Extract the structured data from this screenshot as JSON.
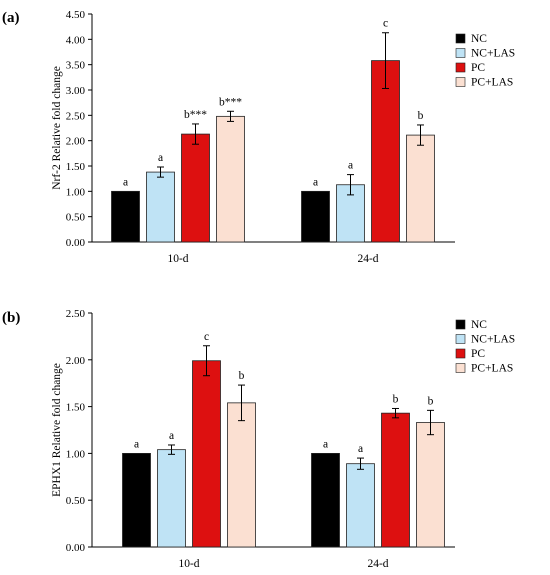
{
  "figure": {
    "panels": [
      {
        "label": "(a)"
      },
      {
        "label": "(b)"
      }
    ]
  },
  "colors": {
    "NC": "#000000",
    "NC+LAS": "#bfe3f5",
    "PC": "#dd1010",
    "PC+LAS": "#fbe0d2"
  },
  "chart_data": [
    {
      "type": "bar",
      "ylabel": "Nrf-2 Relative fold change",
      "ylim": [
        0,
        4.5
      ],
      "yticks": [
        "0.00",
        "0.50",
        "1.00",
        "1.50",
        "2.00",
        "2.50",
        "3.00",
        "3.50",
        "4.00",
        "4.50"
      ],
      "categories": [
        "10-d",
        "24-d"
      ],
      "legend": "top-right",
      "series": [
        {
          "name": "NC",
          "values": [
            1.0,
            1.0
          ],
          "errors": [
            0.0,
            0.0
          ],
          "letters": [
            "a",
            "a"
          ]
        },
        {
          "name": "NC+LAS",
          "values": [
            1.38,
            1.13
          ],
          "errors": [
            0.1,
            0.2
          ],
          "letters": [
            "a",
            "a"
          ]
        },
        {
          "name": "PC",
          "values": [
            2.13,
            3.58
          ],
          "errors": [
            0.2,
            0.55
          ],
          "letters": [
            "b***",
            "c"
          ]
        },
        {
          "name": "PC+LAS",
          "values": [
            2.48,
            2.11
          ],
          "errors": [
            0.1,
            0.2
          ],
          "letters": [
            "b***",
            "b"
          ]
        }
      ]
    },
    {
      "type": "bar",
      "ylabel": "EPHX1 Relative fold change",
      "ylim": [
        0,
        2.5
      ],
      "yticks": [
        "0.00",
        "0.50",
        "1.00",
        "1.50",
        "2.00",
        "2.50"
      ],
      "categories": [
        "10-d",
        "24-d"
      ],
      "legend": "top-right",
      "series": [
        {
          "name": "NC",
          "values": [
            1.0,
            1.0
          ],
          "errors": [
            0.0,
            0.0
          ],
          "letters": [
            "a",
            "a"
          ]
        },
        {
          "name": "NC+LAS",
          "values": [
            1.04,
            0.89
          ],
          "errors": [
            0.05,
            0.06
          ],
          "letters": [
            "a",
            "a"
          ]
        },
        {
          "name": "PC",
          "values": [
            1.99,
            1.43
          ],
          "errors": [
            0.16,
            0.05
          ],
          "letters": [
            "c",
            "b"
          ]
        },
        {
          "name": "PC+LAS",
          "values": [
            1.54,
            1.33
          ],
          "errors": [
            0.19,
            0.13
          ],
          "letters": [
            "b",
            "b"
          ]
        }
      ]
    }
  ]
}
